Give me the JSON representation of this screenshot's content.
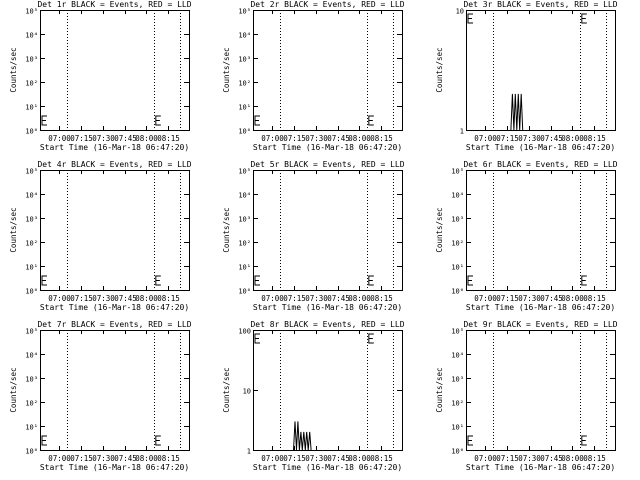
{
  "chart_data": [
    {
      "type": "line",
      "title": "Det 1r BLACK = Events, RED = LLD",
      "xlabel": "Start Time (16-Mar-18 06:47:20)",
      "ylabel": "Counts/sec",
      "x_ticks": [
        "07:00",
        "07:15",
        "07:30",
        "07:45",
        "08:00",
        "08:15"
      ],
      "y_ticks": [
        "10⁰",
        "10¹",
        "10²",
        "10³",
        "10⁴",
        "10⁵"
      ],
      "y_scale": "log",
      "ylim": [
        1,
        100000
      ],
      "marker_times": [
        "07:06",
        "08:05",
        "08:23"
      ],
      "series": []
    },
    {
      "type": "line",
      "title": "Det 2r BLACK = Events, RED = LLD",
      "xlabel": "Start Time (16-Mar-18 06:47:20)",
      "ylabel": "Counts/sec",
      "x_ticks": [
        "07:00",
        "07:15",
        "07:30",
        "07:45",
        "08:00",
        "08:15"
      ],
      "y_ticks": [
        "10⁰",
        "10¹",
        "10²",
        "10³",
        "10⁴",
        "10⁵"
      ],
      "y_scale": "log",
      "ylim": [
        1,
        100000
      ],
      "marker_times": [
        "07:06",
        "08:05",
        "08:23"
      ],
      "series": []
    },
    {
      "type": "line",
      "title": "Det 3r BLACK = Events, RED = LLD",
      "xlabel": "Start Time (16-Mar-18 06:47:20)",
      "ylabel": "Counts/sec",
      "x_ticks": [
        "07:00",
        "07:15",
        "07:30",
        "07:45",
        "08:00",
        "08:15"
      ],
      "y_ticks": [
        "1",
        "10"
      ],
      "y_scale": "log",
      "ylim": [
        1,
        10
      ],
      "marker_times": [
        "07:06",
        "08:05",
        "08:23"
      ],
      "series": [
        {
          "values": [
            [
              7.18,
              1
            ],
            [
              7.19,
              2
            ],
            [
              7.2,
              1
            ],
            [
              7.21,
              2
            ],
            [
              7.22,
              1
            ],
            [
              7.23,
              2
            ],
            [
              7.24,
              1
            ],
            [
              7.25,
              2
            ],
            [
              7.26,
              1
            ]
          ]
        }
      ]
    },
    {
      "type": "line",
      "title": "Det 4r BLACK = Events, RED = LLD",
      "xlabel": "Start Time (16-Mar-18 06:47:20)",
      "ylabel": "Counts/sec",
      "x_ticks": [
        "07:00",
        "07:15",
        "07:30",
        "07:45",
        "08:00",
        "08:15"
      ],
      "y_ticks": [
        "10⁰",
        "10¹",
        "10²",
        "10³",
        "10⁴",
        "10⁵"
      ],
      "y_scale": "log",
      "ylim": [
        1,
        100000
      ],
      "marker_times": [
        "07:06",
        "08:05",
        "08:23"
      ],
      "series": []
    },
    {
      "type": "line",
      "title": "Det 5r BLACK = Events, RED = LLD",
      "xlabel": "Start Time (16-Mar-18 06:47:20)",
      "ylabel": "Counts/sec",
      "x_ticks": [
        "07:00",
        "07:15",
        "07:30",
        "07:45",
        "08:00",
        "08:15"
      ],
      "y_ticks": [
        "10⁰",
        "10¹",
        "10²",
        "10³",
        "10⁴",
        "10⁵"
      ],
      "y_scale": "log",
      "ylim": [
        1,
        100000
      ],
      "marker_times": [
        "07:06",
        "08:05",
        "08:23"
      ],
      "series": []
    },
    {
      "type": "line",
      "title": "Det 6r BLACK = Events, RED = LLD",
      "xlabel": "Start Time (16-Mar-18 06:47:20)",
      "ylabel": "Counts/sec",
      "x_ticks": [
        "07:00",
        "07:15",
        "07:30",
        "07:45",
        "08:00",
        "08:15"
      ],
      "y_ticks": [
        "10⁰",
        "10¹",
        "10²",
        "10³",
        "10⁴",
        "10⁵"
      ],
      "y_scale": "log",
      "ylim": [
        1,
        100000
      ],
      "marker_times": [
        "07:06",
        "08:05",
        "08:23"
      ],
      "series": []
    },
    {
      "type": "line",
      "title": "Det 7r BLACK = Events, RED = LLD",
      "xlabel": "Start Time (16-Mar-18 06:47:20)",
      "ylabel": "Counts/sec",
      "x_ticks": [
        "07:00",
        "07:15",
        "07:30",
        "07:45",
        "08:00",
        "08:15"
      ],
      "y_ticks": [
        "10⁰",
        "10¹",
        "10²",
        "10³",
        "10⁴",
        "10⁵"
      ],
      "y_scale": "log",
      "ylim": [
        1,
        100000
      ],
      "marker_times": [
        "07:06",
        "08:05",
        "08:23"
      ],
      "series": []
    },
    {
      "type": "line",
      "title": "Det 8r BLACK = Events, RED = LLD",
      "xlabel": "Start Time (16-Mar-18 06:47:20)",
      "ylabel": "Counts/sec",
      "x_ticks": [
        "07:00",
        "07:15",
        "07:30",
        "07:45",
        "08:00",
        "08:15"
      ],
      "y_ticks": [
        "1",
        "10",
        "100"
      ],
      "y_scale": "log",
      "ylim": [
        1,
        100
      ],
      "marker_times": [
        "07:06",
        "08:05",
        "08:23"
      ],
      "series": [
        {
          "values": [
            [
              7.15,
              1
            ],
            [
              7.16,
              3
            ],
            [
              7.17,
              1
            ],
            [
              7.18,
              3
            ],
            [
              7.19,
              1
            ],
            [
              7.2,
              2
            ],
            [
              7.21,
              1
            ],
            [
              7.22,
              2
            ],
            [
              7.23,
              1
            ],
            [
              7.24,
              2
            ],
            [
              7.25,
              1
            ],
            [
              7.26,
              2
            ],
            [
              7.27,
              1
            ]
          ]
        }
      ]
    },
    {
      "type": "line",
      "title": "Det 9r BLACK = Events, RED = LLD",
      "xlabel": "Start Time (16-Mar-18 06:47:20)",
      "ylabel": "Counts/sec",
      "x_ticks": [
        "07:00",
        "07:15",
        "07:30",
        "07:45",
        "08:00",
        "08:15"
      ],
      "y_ticks": [
        "10⁰",
        "10¹",
        "10²",
        "10³",
        "10⁴",
        "10⁵"
      ],
      "y_scale": "log",
      "ylim": [
        1,
        100000
      ],
      "marker_times": [
        "07:06",
        "08:05",
        "08:23"
      ],
      "series": []
    }
  ]
}
